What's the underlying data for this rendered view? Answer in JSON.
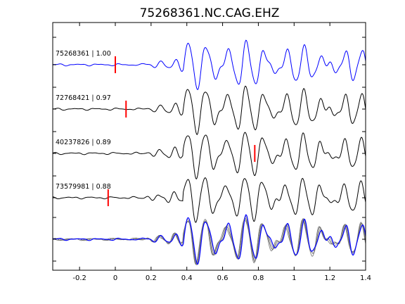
{
  "chart_data": {
    "type": "line",
    "title": "75268361.NC.CAG.EHZ",
    "xlabel": "",
    "ylabel": "",
    "xlim": [
      -0.35,
      1.4
    ],
    "xticks": [
      -0.2,
      0,
      0.2,
      0.4,
      0.6,
      0.8,
      1,
      1.2,
      1.4
    ],
    "xtick_labels": [
      "-0.2",
      "0",
      "0.2",
      "0.4",
      "0.6",
      "0.8",
      "1",
      "1.2",
      "1.4"
    ],
    "grid": false,
    "legend": "none",
    "traces": [
      {
        "id": "75268361",
        "corr": "1.00",
        "label": "75268361 | 1.00",
        "color": "#0000ff",
        "pick": 0.0,
        "phase": 0.0
      },
      {
        "id": "72768421",
        "corr": "0.97",
        "label": "72768421 | 0.97",
        "color": "#000000",
        "pick": 0.06,
        "phase": 0.7
      },
      {
        "id": "40237826",
        "corr": "0.89",
        "label": "40237826 | 0.89",
        "color": "#000000",
        "pick": 0.78,
        "phase": 1.5
      },
      {
        "id": "73579981",
        "corr": "0.88",
        "label": "73579981 | 0.88",
        "color": "#000000",
        "pick": -0.04,
        "phase": 2.3
      }
    ],
    "pick_color": "#ff0000",
    "stack_colors": [
      "#808080",
      "#606060",
      "#909090",
      "#0000ff"
    ]
  }
}
